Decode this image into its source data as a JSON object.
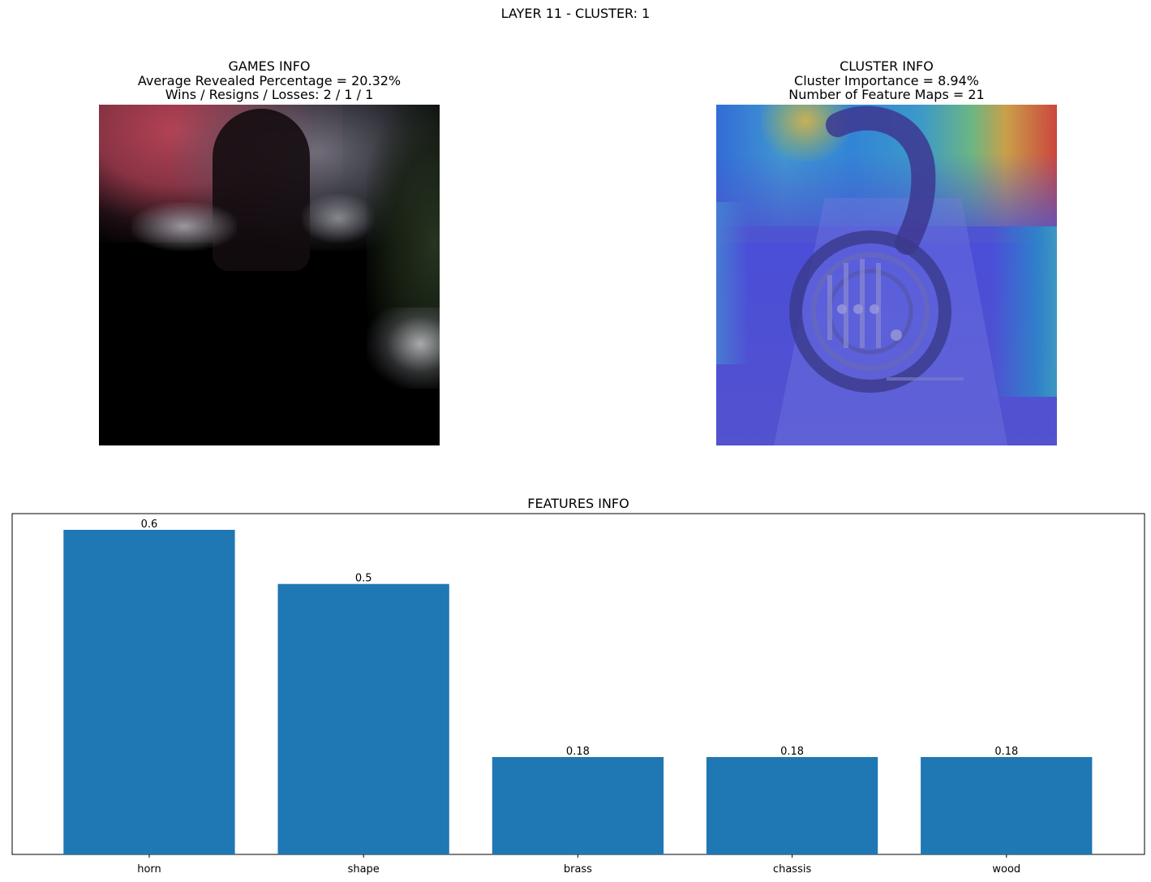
{
  "suptitle": "LAYER 11 - CLUSTER: 1",
  "games_info": {
    "title": "GAMES INFO",
    "line1": "Average Revealed Percentage = 20.32%",
    "line2": "Wins / Resigns / Losses: 2 / 1 / 1"
  },
  "cluster_info": {
    "title": "CLUSTER INFO",
    "line1": "Cluster Importance = 8.94%",
    "line2": "Number of Feature Maps = 21"
  },
  "colors": {
    "bar": "#1f77b4",
    "axis": "#000000"
  },
  "chart_data": {
    "type": "bar",
    "title": "FEATURES INFO",
    "categories": [
      "horn",
      "shape",
      "brass",
      "chassis",
      "wood"
    ],
    "values": [
      0.6,
      0.5,
      0.18,
      0.18,
      0.18
    ],
    "value_labels": [
      "0.6",
      "0.5",
      "0.18",
      "0.18",
      "0.18"
    ],
    "xlabel": "",
    "ylabel": "",
    "ylim": [
      0,
      0.63
    ],
    "yaxis_ticks_visible": false,
    "grid": false
  }
}
